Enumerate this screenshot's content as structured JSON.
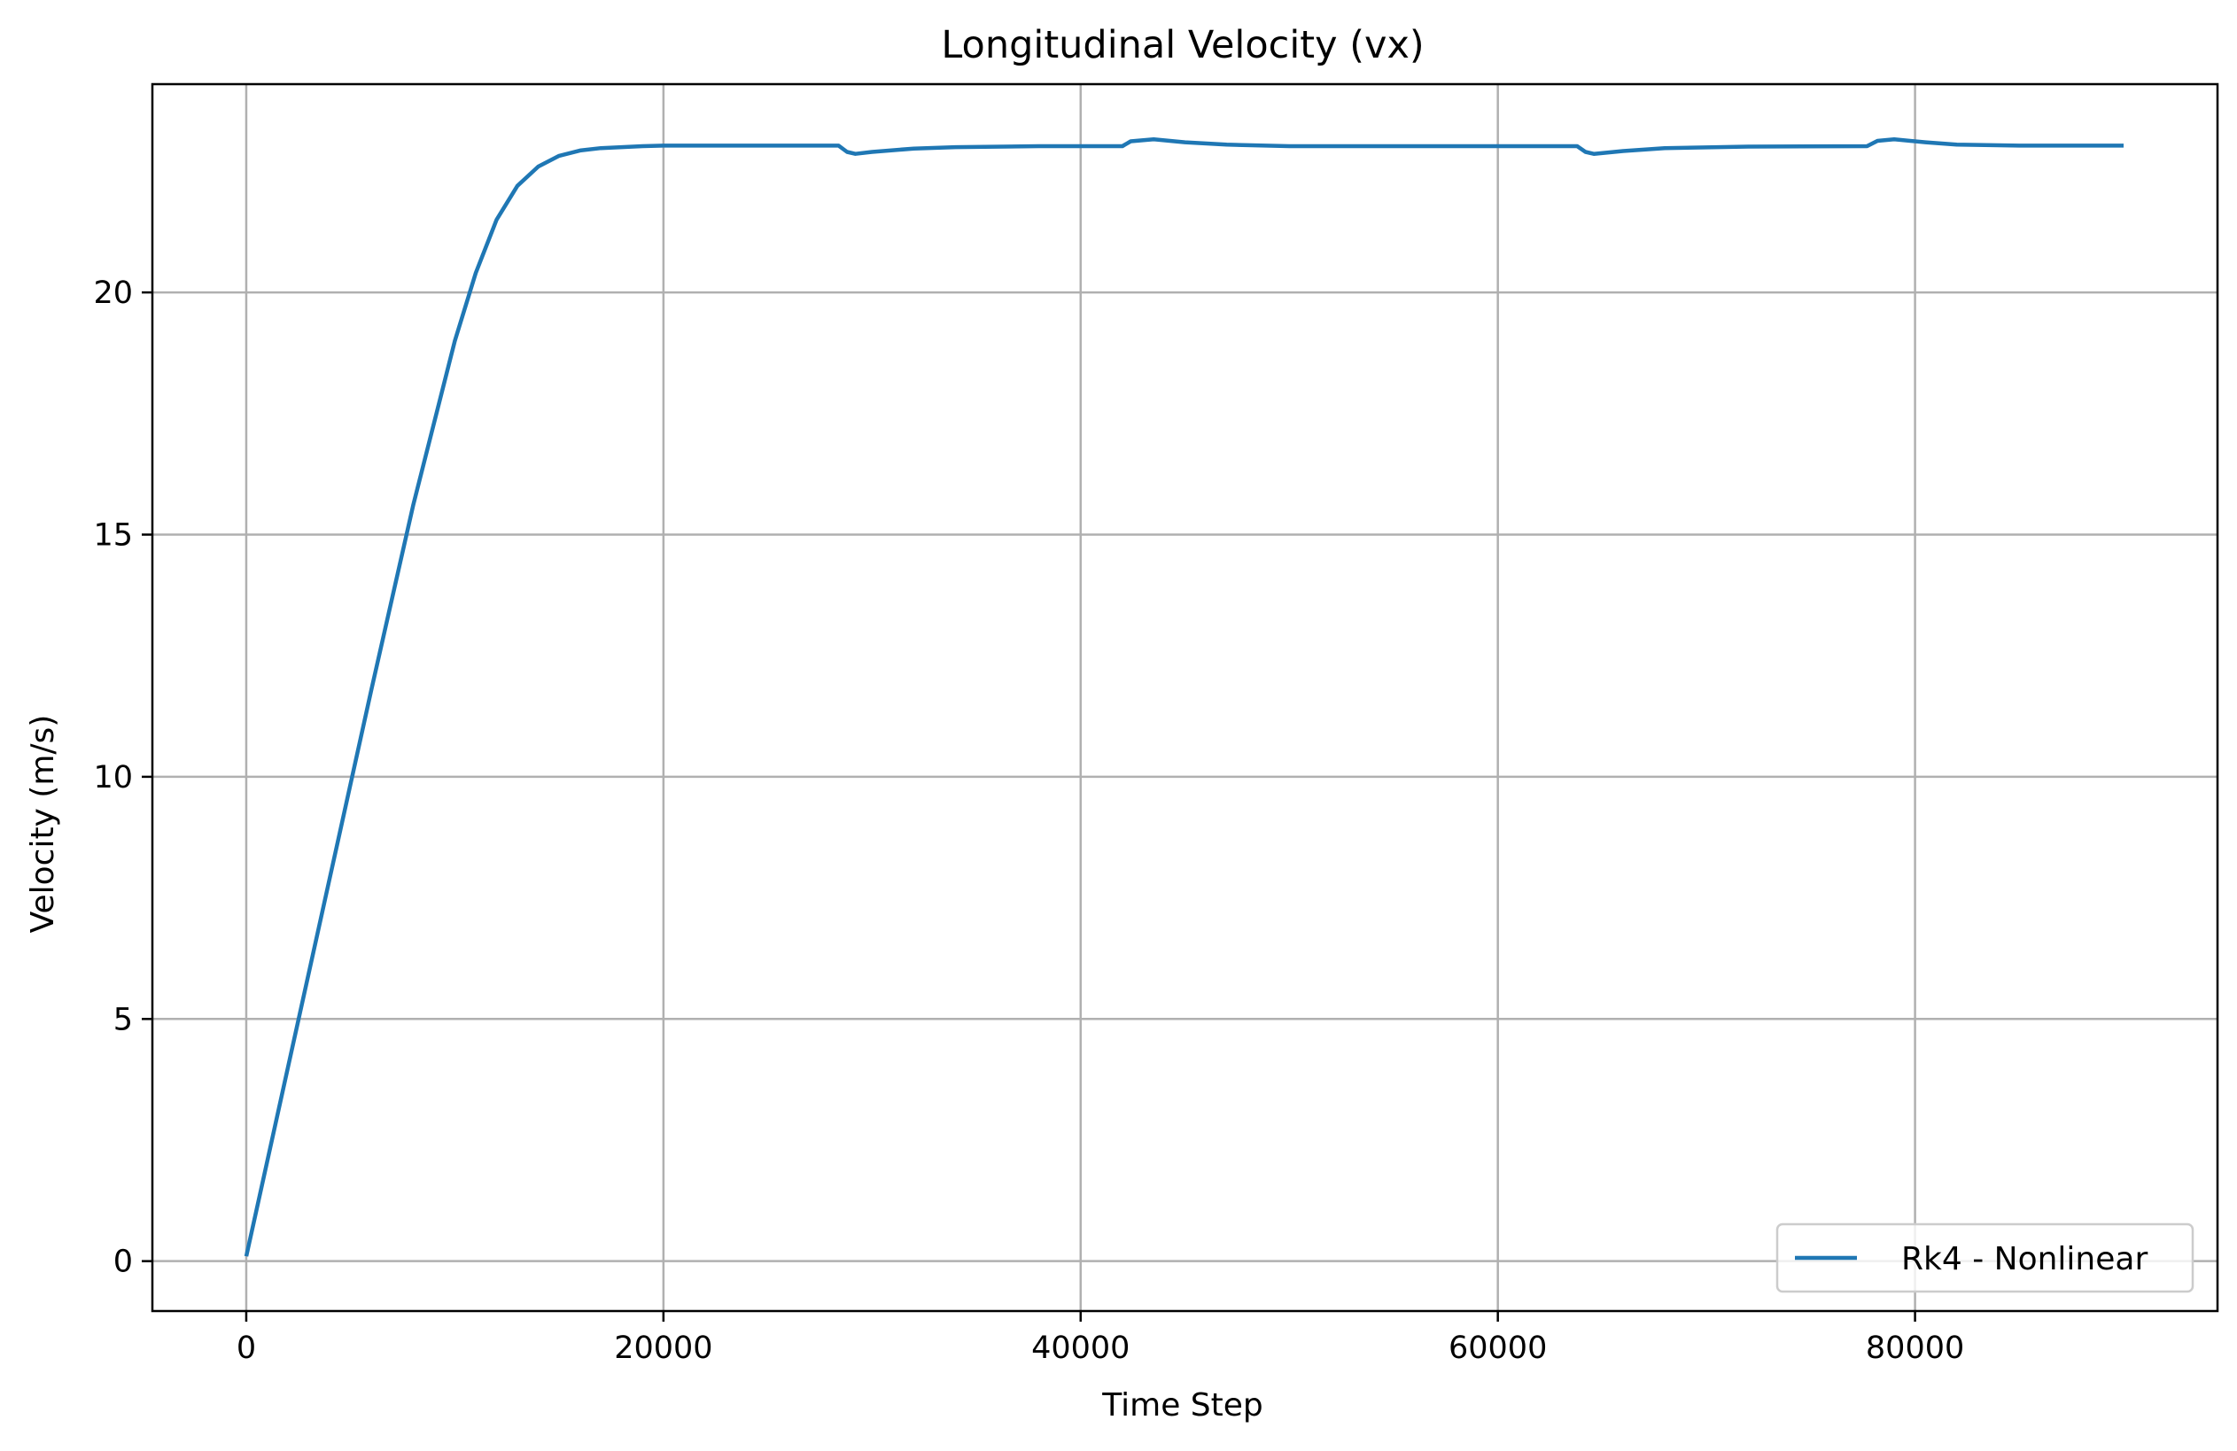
{
  "chart_data": {
    "type": "line",
    "title": "Longitudinal Velocity (vx)",
    "xlabel": "Time Step",
    "ylabel": "Velocity (m/s)",
    "xlim": [
      -4500,
      94500
    ],
    "ylim": [
      -1.03,
      24.3
    ],
    "xticks": [
      0,
      20000,
      40000,
      60000,
      80000
    ],
    "xtick_labels": [
      "0",
      "20000",
      "40000",
      "60000",
      "80000"
    ],
    "yticks": [
      0,
      5,
      10,
      15,
      20
    ],
    "ytick_labels": [
      "0",
      "5",
      "10",
      "15",
      "20"
    ],
    "grid": true,
    "legend_position": "lower-right",
    "series": [
      {
        "name": "Rk4 - Nonlinear",
        "color": "#1f77b4",
        "x": [
          0,
          2000,
          4000,
          6000,
          8000,
          10000,
          11000,
          12000,
          13000,
          14000,
          15000,
          16000,
          17000,
          18000,
          19000,
          20000,
          24000,
          28400,
          28800,
          29200,
          30000,
          32000,
          34000,
          38000,
          42000,
          42400,
          43500,
          45000,
          47000,
          50000,
          55000,
          60000,
          63800,
          64200,
          64600,
          66000,
          68000,
          72000,
          77700,
          78200,
          79000,
          80500,
          82000,
          85000,
          90000
        ],
        "y": [
          0.1,
          4.0,
          7.9,
          11.8,
          15.6,
          19.0,
          20.4,
          21.5,
          22.2,
          22.6,
          22.82,
          22.93,
          22.98,
          23.0,
          23.02,
          23.03,
          23.03,
          23.03,
          22.9,
          22.86,
          22.9,
          22.97,
          23.0,
          23.02,
          23.02,
          23.12,
          23.16,
          23.1,
          23.05,
          23.02,
          23.02,
          23.02,
          23.02,
          22.9,
          22.86,
          22.92,
          22.98,
          23.01,
          23.02,
          23.13,
          23.16,
          23.1,
          23.05,
          23.03,
          23.03
        ]
      }
    ]
  }
}
